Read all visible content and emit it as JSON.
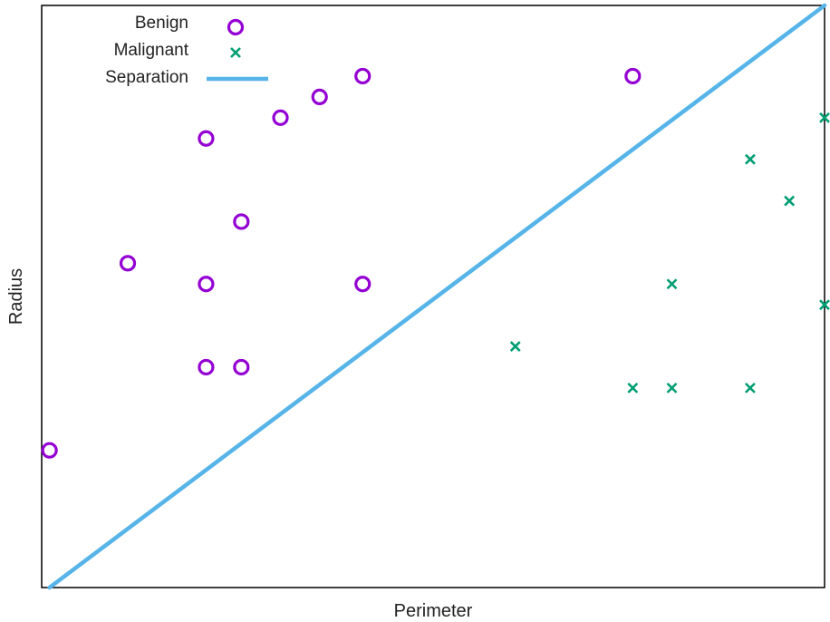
{
  "chart_data": {
    "type": "scatter",
    "title": "",
    "xlabel": "Perimeter",
    "ylabel": "Radius",
    "xlim": [
      0,
      20
    ],
    "ylim": [
      0,
      14
    ],
    "grid": false,
    "legend_position": "top-left",
    "colors": {
      "benign": "#9400d3",
      "malignant": "#009e73",
      "separation": "#56b4e9",
      "frame": "#000000"
    },
    "series": [
      {
        "name": "Benign",
        "marker": "circle",
        "points": [
          {
            "x": 0.2,
            "y": 3.3
          },
          {
            "x": 2.2,
            "y": 7.8
          },
          {
            "x": 4.2,
            "y": 10.8
          },
          {
            "x": 4.2,
            "y": 7.3
          },
          {
            "x": 4.2,
            "y": 5.3
          },
          {
            "x": 5.1,
            "y": 8.8
          },
          {
            "x": 5.1,
            "y": 5.3
          },
          {
            "x": 6.1,
            "y": 11.3
          },
          {
            "x": 7.1,
            "y": 11.8
          },
          {
            "x": 8.2,
            "y": 12.3
          },
          {
            "x": 8.2,
            "y": 7.3
          },
          {
            "x": 15.1,
            "y": 12.3
          }
        ]
      },
      {
        "name": "Malignant",
        "marker": "cross",
        "points": [
          {
            "x": 12.1,
            "y": 5.8
          },
          {
            "x": 15.1,
            "y": 4.8
          },
          {
            "x": 16.1,
            "y": 4.8
          },
          {
            "x": 16.1,
            "y": 7.3
          },
          {
            "x": 18.1,
            "y": 4.8
          },
          {
            "x": 18.1,
            "y": 10.3
          },
          {
            "x": 19.1,
            "y": 9.3
          },
          {
            "x": 20.0,
            "y": 11.3
          },
          {
            "x": 20.0,
            "y": 6.8
          }
        ]
      },
      {
        "name": "Separation",
        "type": "line",
        "points": [
          {
            "x": 0.2,
            "y": 0
          },
          {
            "x": 20.0,
            "y": 14.0
          }
        ]
      }
    ]
  }
}
